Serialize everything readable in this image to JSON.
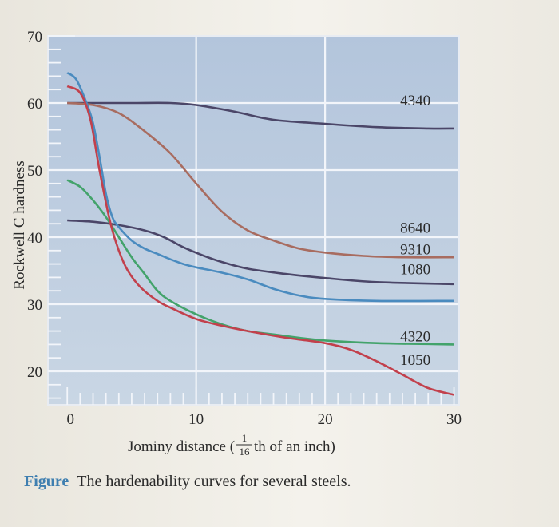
{
  "chart_data": {
    "type": "line",
    "title": "",
    "xlabel": "Jominy distance (",
    "xlabel_fraction": {
      "numerator": "1",
      "denominator": "16"
    },
    "xlabel_suffix": "th of an inch)",
    "ylabel": "Rockwell C hardness",
    "xlim": [
      0,
      30
    ],
    "ylim": [
      15,
      70
    ],
    "x_ticks": [
      "0",
      "10",
      "20",
      "30"
    ],
    "y_ticks": [
      "20",
      "30",
      "40",
      "50",
      "60",
      "70"
    ],
    "grid": true,
    "series": [
      {
        "name": "4340",
        "color": "#4b4668",
        "label_at": [
          27,
          60.5
        ],
        "points": [
          [
            0,
            60
          ],
          [
            2,
            60
          ],
          [
            5,
            60
          ],
          [
            8,
            60
          ],
          [
            10,
            59.7
          ],
          [
            13,
            58.7
          ],
          [
            16,
            57.5
          ],
          [
            20,
            56.9
          ],
          [
            24,
            56.4
          ],
          [
            28,
            56.2
          ],
          [
            30,
            56.2
          ]
        ]
      },
      {
        "name": "8640",
        "color": "#a86c60",
        "label_at": [
          27,
          41.5
        ],
        "points": [
          [
            0,
            60
          ],
          [
            2,
            59.7
          ],
          [
            4,
            58.5
          ],
          [
            6,
            55.8
          ],
          [
            8,
            52.5
          ],
          [
            10,
            48
          ],
          [
            12,
            43.8
          ],
          [
            14,
            41
          ],
          [
            16,
            39.5
          ],
          [
            18,
            38.3
          ],
          [
            20,
            37.7
          ],
          [
            23,
            37.2
          ],
          [
            26,
            37
          ],
          [
            30,
            37
          ]
        ]
      },
      {
        "name": "9310",
        "color": "#4b4668",
        "label_at": [
          27,
          38.3
        ],
        "points": [
          [
            0,
            42.5
          ],
          [
            2,
            42.3
          ],
          [
            4,
            41.8
          ],
          [
            6,
            41
          ],
          [
            7.5,
            40
          ],
          [
            9,
            38.5
          ],
          [
            10.5,
            37.3
          ],
          [
            12,
            36.3
          ],
          [
            14,
            35.3
          ],
          [
            17,
            34.5
          ],
          [
            20,
            33.9
          ],
          [
            24,
            33.3
          ],
          [
            30,
            33
          ]
        ]
      },
      {
        "name": "1080",
        "color": "#4a8bbf",
        "label_at": [
          27,
          35.3
        ],
        "points": [
          [
            0,
            64.5
          ],
          [
            0.7,
            63.5
          ],
          [
            1.5,
            60
          ],
          [
            2,
            57
          ],
          [
            2.5,
            52
          ],
          [
            3,
            46.5
          ],
          [
            3.5,
            43
          ],
          [
            4,
            41.5
          ],
          [
            5,
            39.5
          ],
          [
            6,
            38.3
          ],
          [
            7,
            37.5
          ],
          [
            8,
            36.7
          ],
          [
            9,
            36
          ],
          [
            10,
            35.5
          ],
          [
            12,
            34.7
          ],
          [
            14,
            33.7
          ],
          [
            16,
            32.3
          ],
          [
            18,
            31.3
          ],
          [
            20,
            30.8
          ],
          [
            24,
            30.5
          ],
          [
            30,
            30.5
          ]
        ]
      },
      {
        "name": "4320",
        "color": "#43a36b",
        "label_at": [
          27,
          25.3
        ],
        "points": [
          [
            0,
            48.5
          ],
          [
            1,
            47.5
          ],
          [
            2,
            45.5
          ],
          [
            3,
            43
          ],
          [
            4,
            40
          ],
          [
            5,
            37
          ],
          [
            6,
            34.5
          ],
          [
            7,
            32
          ],
          [
            8,
            30.5
          ],
          [
            10,
            28.5
          ],
          [
            12,
            27
          ],
          [
            14,
            26
          ],
          [
            16,
            25.5
          ],
          [
            18,
            25
          ],
          [
            20,
            24.6
          ],
          [
            24,
            24.2
          ],
          [
            30,
            24
          ]
        ]
      },
      {
        "name": "1050",
        "color": "#c2404c",
        "label_at": [
          27,
          21.8
        ],
        "points": [
          [
            0,
            62.5
          ],
          [
            1,
            61.5
          ],
          [
            1.8,
            57.5
          ],
          [
            2.5,
            50
          ],
          [
            3.3,
            42.5
          ],
          [
            4,
            38
          ],
          [
            4.7,
            35
          ],
          [
            5.7,
            32.5
          ],
          [
            7,
            30.5
          ],
          [
            8,
            29.5
          ],
          [
            10,
            27.8
          ],
          [
            12,
            26.8
          ],
          [
            14,
            26
          ],
          [
            17,
            25
          ],
          [
            20,
            24.2
          ],
          [
            22,
            23.2
          ],
          [
            24,
            21.5
          ],
          [
            26,
            19.5
          ],
          [
            28,
            17.5
          ],
          [
            30,
            16.5
          ]
        ]
      }
    ]
  },
  "caption": {
    "figure_word": "Figure",
    "text": "The hardenability curves for several steels."
  }
}
